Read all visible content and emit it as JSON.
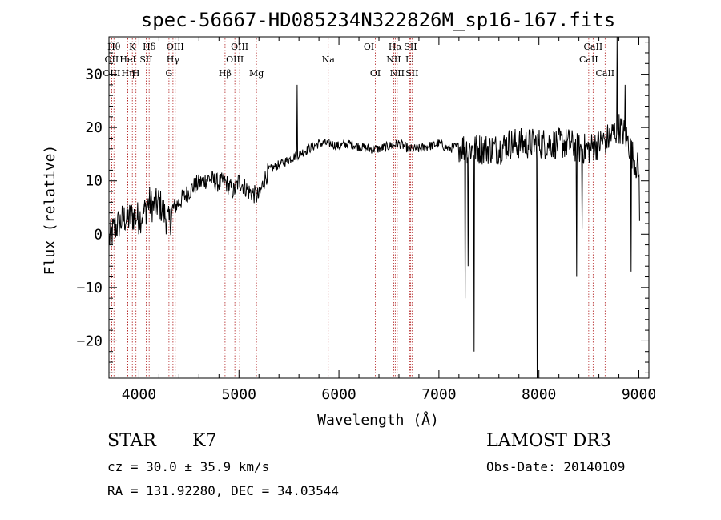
{
  "chart_data": {
    "type": "line",
    "title": "spec-56667-HD085234N322826M_sp16-167.fits",
    "xlabel": "Wavelength (Å)",
    "ylabel": "Flux (relative)",
    "xlim": [
      3700,
      9100
    ],
    "ylim": [
      -27,
      37
    ],
    "x_ticks": [
      4000,
      5000,
      6000,
      7000,
      8000,
      9000
    ],
    "y_ticks": [
      -20,
      -10,
      0,
      10,
      20,
      30
    ],
    "x_tick_labels": [
      "4000",
      "5000",
      "6000",
      "7000",
      "8000",
      "9000"
    ],
    "y_tick_labels": [
      "−20",
      "−10",
      "0",
      "10",
      "20",
      "30"
    ],
    "grid": false,
    "line_color": "#000000",
    "marker_color": "#b22222",
    "series": [
      {
        "name": "spectrum",
        "anchors": [
          [
            3700,
            -1
          ],
          [
            3750,
            1
          ],
          [
            3800,
            2
          ],
          [
            3850,
            3
          ],
          [
            3900,
            3
          ],
          [
            3950,
            3.5
          ],
          [
            4000,
            3
          ],
          [
            4050,
            4
          ],
          [
            4100,
            6
          ],
          [
            4150,
            5
          ],
          [
            4200,
            6
          ],
          [
            4250,
            4
          ],
          [
            4300,
            2
          ],
          [
            4350,
            5
          ],
          [
            4400,
            6
          ],
          [
            4450,
            7
          ],
          [
            4500,
            8
          ],
          [
            4550,
            9
          ],
          [
            4600,
            9.5
          ],
          [
            4650,
            10
          ],
          [
            4700,
            10.5
          ],
          [
            4750,
            10
          ],
          [
            4800,
            9.5
          ],
          [
            4850,
            10
          ],
          [
            4900,
            9
          ],
          [
            4950,
            8
          ],
          [
            5000,
            10
          ],
          [
            5050,
            9
          ],
          [
            5100,
            8
          ],
          [
            5150,
            7.5
          ],
          [
            5200,
            7
          ],
          [
            5250,
            10
          ],
          [
            5300,
            12
          ],
          [
            5400,
            13
          ],
          [
            5500,
            14
          ],
          [
            5600,
            15
          ],
          [
            5700,
            16
          ],
          [
            5800,
            17
          ],
          [
            5900,
            17
          ],
          [
            6000,
            16.5
          ],
          [
            6100,
            17
          ],
          [
            6200,
            16.5
          ],
          [
            6300,
            16
          ],
          [
            6400,
            16
          ],
          [
            6500,
            16.5
          ],
          [
            6600,
            17
          ],
          [
            6700,
            16
          ],
          [
            6800,
            16
          ],
          [
            6900,
            16.5
          ],
          [
            7000,
            17
          ],
          [
            7100,
            16
          ],
          [
            7200,
            16.5
          ],
          [
            7300,
            16
          ],
          [
            7400,
            16
          ],
          [
            7500,
            16
          ],
          [
            7600,
            16
          ],
          [
            7700,
            17
          ],
          [
            7800,
            17
          ],
          [
            7900,
            17
          ],
          [
            8000,
            17
          ],
          [
            8100,
            17
          ],
          [
            8200,
            17
          ],
          [
            8300,
            17
          ],
          [
            8400,
            16
          ],
          [
            8500,
            16
          ],
          [
            8600,
            17
          ],
          [
            8700,
            18
          ],
          [
            8800,
            20
          ],
          [
            8850,
            19
          ],
          [
            8900,
            17
          ],
          [
            8950,
            14
          ],
          [
            9000,
            12
          ],
          [
            9010,
            2
          ]
        ],
        "spikes": [
          [
            5580,
            28
          ],
          [
            7260,
            -12
          ],
          [
            7290,
            -6
          ],
          [
            7350,
            -22
          ],
          [
            7980,
            -27
          ],
          [
            8375,
            -8
          ],
          [
            8430,
            1
          ],
          [
            8780,
            37
          ],
          [
            8860,
            28
          ],
          [
            8920,
            -7
          ]
        ]
      }
    ],
    "line_markers": [
      {
        "x": 3750,
        "label": "Hθ",
        "row": 0
      },
      {
        "x": 3727,
        "label": "OII",
        "row": 1
      },
      {
        "x": 3727,
        "label": "OIII",
        "row": 2
      },
      {
        "x": 3889,
        "label": "Hη",
        "row": 2
      },
      {
        "x": 3934,
        "label": "K",
        "row": 0
      },
      {
        "x": 3889,
        "label": "HeI",
        "row": 1
      },
      {
        "x": 3970,
        "label": "H",
        "row": 2
      },
      {
        "x": 4072,
        "label": "SII",
        "row": 1
      },
      {
        "x": 4102,
        "label": "Hδ",
        "row": 0
      },
      {
        "x": 4300,
        "label": "G",
        "row": 2
      },
      {
        "x": 4340,
        "label": "Hγ",
        "row": 1
      },
      {
        "x": 4363,
        "label": "OIII",
        "row": 0
      },
      {
        "x": 4861,
        "label": "Hβ",
        "row": 2
      },
      {
        "x": 4959,
        "label": "OIII",
        "row": 1
      },
      {
        "x": 5007,
        "label": "OIII",
        "row": 0
      },
      {
        "x": 5175,
        "label": "Mg",
        "row": 2
      },
      {
        "x": 5893,
        "label": "Na",
        "row": 1
      },
      {
        "x": 6300,
        "label": "OI",
        "row": 0
      },
      {
        "x": 6364,
        "label": "OI",
        "row": 2
      },
      {
        "x": 6548,
        "label": "NII",
        "row": 1
      },
      {
        "x": 6563,
        "label": "Hα",
        "row": 0
      },
      {
        "x": 6583,
        "label": "NII",
        "row": 2
      },
      {
        "x": 6708,
        "label": "Li",
        "row": 1
      },
      {
        "x": 6716,
        "label": "SII",
        "row": 0
      },
      {
        "x": 6731,
        "label": "SII",
        "row": 2
      },
      {
        "x": 8498,
        "label": "CaII",
        "row": 1
      },
      {
        "x": 8542,
        "label": "CaII",
        "row": 0
      },
      {
        "x": 8662,
        "label": "CaII",
        "row": 2
      }
    ]
  },
  "info": {
    "object_class": "STAR",
    "subclass": "K7",
    "survey": "LAMOST DR3",
    "redshift": "cz = 30.0 ± 35.9 km/s",
    "obs_date": "Obs-Date: 20140109",
    "coords": "RA = 131.92280, DEC =  34.03544"
  }
}
